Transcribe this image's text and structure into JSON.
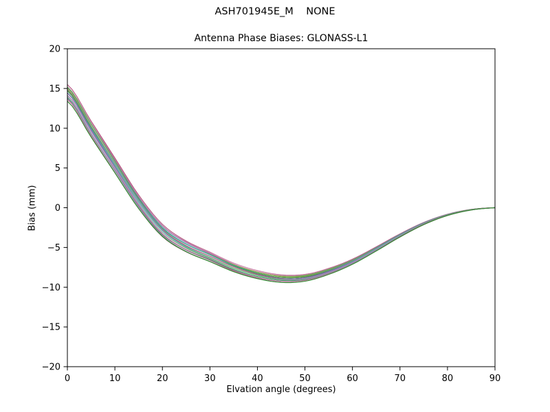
{
  "figure": {
    "title": "ASH701945E_M    NONE",
    "axes_title": "Antenna Phase Biases: GLONASS-L1",
    "xlabel": "Elvation angle (degrees)",
    "ylabel": "Bias (mm)"
  },
  "chart_data": {
    "type": "line",
    "title": "ASH701945E_M    NONE",
    "subtitle": "Antenna Phase Biases: GLONASS-L1",
    "xlabel": "Elvation angle (degrees)",
    "ylabel": "Bias (mm)",
    "xlim": [
      0,
      90
    ],
    "ylim": [
      -20,
      20
    ],
    "xticks": [
      0,
      10,
      20,
      30,
      40,
      50,
      60,
      70,
      80,
      90
    ],
    "yticks": [
      -20,
      -15,
      -10,
      -5,
      0,
      5,
      10,
      15,
      20
    ],
    "grid": false,
    "legend_position": "none",
    "description": "Bundle of ~20 overlapping phase-bias curves, one per GLONASS satellite channel; all follow the same mean shape, spreading about +/-1 mm at 0 deg elevation, ~+/-0.45 mm at the minimum near 45 deg, converging to 0 mm at 90 deg.",
    "x": [
      0,
      5,
      10,
      15,
      20,
      25,
      30,
      35,
      40,
      45,
      50,
      55,
      60,
      65,
      70,
      75,
      80,
      85,
      90
    ],
    "mean_values": [
      14.5,
      9.9,
      5.3,
      0.7,
      -2.9,
      -4.9,
      -6.2,
      -7.5,
      -8.4,
      -8.9,
      -8.8,
      -8.0,
      -6.8,
      -5.2,
      -3.5,
      -2.0,
      -0.9,
      -0.25,
      0.0
    ],
    "band_spread_mm_at_0deg": 2.0,
    "series": [
      {
        "color": "#b0527a",
        "offset": 1.0
      },
      {
        "color": "#c4729c",
        "offset": 0.89
      },
      {
        "color": "#d494b4",
        "offset": 0.79
      },
      {
        "color": "#9a6aaa",
        "offset": 0.68
      },
      {
        "color": "#52ae52",
        "offset": 0.58
      },
      {
        "color": "#8f9f40",
        "offset": 0.47
      },
      {
        "color": "#2fa0a8",
        "offset": 0.37
      },
      {
        "color": "#8a8a8a",
        "offset": 0.26
      },
      {
        "color": "#3f9b3f",
        "offset": 0.16
      },
      {
        "color": "#c06090",
        "offset": 0.05
      },
      {
        "color": "#4fb6bc",
        "offset": -0.05
      },
      {
        "color": "#7d5ba6",
        "offset": -0.16
      },
      {
        "color": "#6fbf6f",
        "offset": -0.26
      },
      {
        "color": "#a4a4a4",
        "offset": -0.37
      },
      {
        "color": "#b784c4",
        "offset": -0.47
      },
      {
        "color": "#44a06c",
        "offset": -0.58
      },
      {
        "color": "#9f5f85",
        "offset": -0.68
      },
      {
        "color": "#7f94a6",
        "offset": -0.79
      },
      {
        "color": "#c4729c",
        "offset": -0.89
      },
      {
        "color": "#2e8b2e",
        "offset": -1.0
      }
    ],
    "axis_color": "#000000",
    "background_color": "#ffffff"
  }
}
